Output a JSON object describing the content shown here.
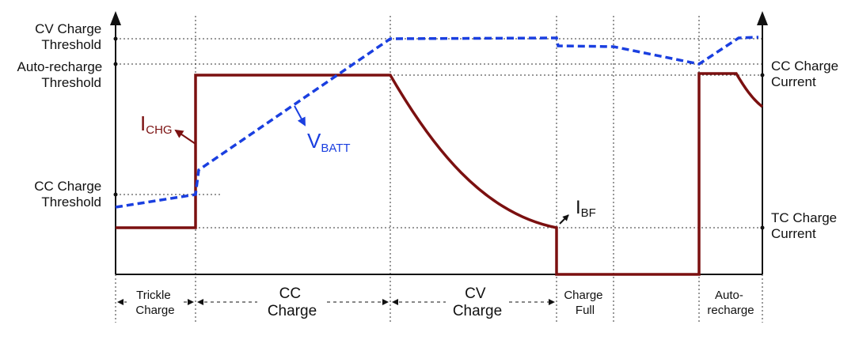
{
  "left_axis": {
    "cv_threshold": [
      "CV Charge",
      "Threshold"
    ],
    "auto_recharge_threshold": [
      "Auto-recharge",
      "Threshold"
    ],
    "cc_threshold": [
      "CC Charge",
      "Threshold"
    ]
  },
  "right_axis": {
    "cc_current": [
      "CC Charge",
      "Current"
    ],
    "tc_current": [
      "TC Charge",
      "Current"
    ]
  },
  "signals": {
    "current": {
      "main": "I",
      "sub": "CHG",
      "color": "#7b1010"
    },
    "voltage": {
      "main": "V",
      "sub": "BATT",
      "color": "#1a3fe0"
    },
    "termination": {
      "main": "I",
      "sub": "BF",
      "color": "#111111"
    }
  },
  "phases": [
    {
      "lines": [
        "Trickle",
        "Charge"
      ]
    },
    {
      "lines": [
        "CC",
        "Charge"
      ]
    },
    {
      "lines": [
        "CV",
        "Charge"
      ]
    },
    {
      "lines": [
        "Charge",
        "Full"
      ]
    },
    {
      "lines": [
        "Auto-",
        "recharge"
      ]
    }
  ]
}
